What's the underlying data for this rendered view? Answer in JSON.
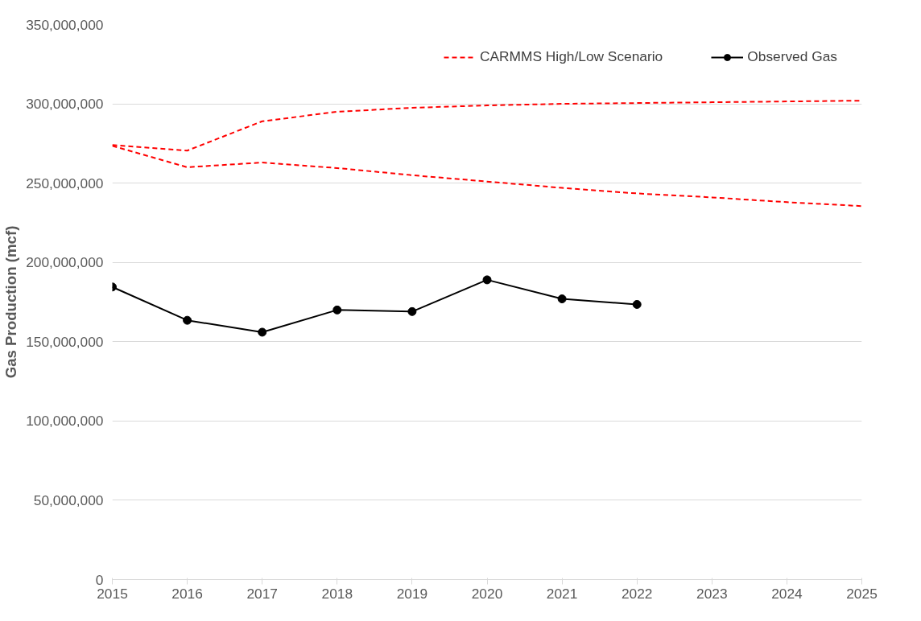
{
  "chart_data": {
    "type": "line",
    "ylabel": "Gas Production (mcf)",
    "x": [
      2015,
      2016,
      2017,
      2018,
      2019,
      2020,
      2021,
      2022,
      2023,
      2024,
      2025
    ],
    "series": [
      {
        "name": "CARMMS High/Low Scenario",
        "color": "#ff0000",
        "line_style": "dashed",
        "marker": "none",
        "values": [
          274000000,
          270500000,
          289000000,
          295000000,
          297500000,
          299000000,
          300000000,
          300500000,
          301000000,
          301500000,
          302000000
        ]
      },
      {
        "color": "#ff0000",
        "line_style": "dashed",
        "marker": "none",
        "values": [
          273500000,
          260000000,
          263000000,
          259500000,
          255000000,
          251000000,
          247000000,
          243500000,
          241000000,
          238000000,
          235500000
        ]
      },
      {
        "name": "Observed Gas",
        "color": "#000000",
        "line_style": "solid",
        "marker": "circle",
        "x": [
          2015,
          2016,
          2017,
          2018,
          2019,
          2020,
          2021,
          2022
        ],
        "values": [
          184500000,
          163500000,
          156000000,
          170000000,
          169000000,
          189000000,
          177000000,
          173500000
        ]
      }
    ],
    "xlim": [
      2015,
      2025
    ],
    "xticks": [
      2015,
      2016,
      2017,
      2018,
      2019,
      2020,
      2021,
      2022,
      2023,
      2024,
      2025
    ],
    "ylim": [
      0,
      350000000
    ],
    "yticks": [
      {
        "value": 0,
        "label": "0"
      },
      {
        "value": 50000000,
        "label": "50,000,000"
      },
      {
        "value": 100000000,
        "label": "100,000,000"
      },
      {
        "value": 150000000,
        "label": "150,000,000"
      },
      {
        "value": 200000000,
        "label": "200,000,000"
      },
      {
        "value": 250000000,
        "label": "250,000,000"
      },
      {
        "value": 300000000,
        "label": "300,000,000"
      },
      {
        "value": 350000000,
        "label": "350,000,000"
      }
    ],
    "grid": "y",
    "legend": "top right"
  }
}
